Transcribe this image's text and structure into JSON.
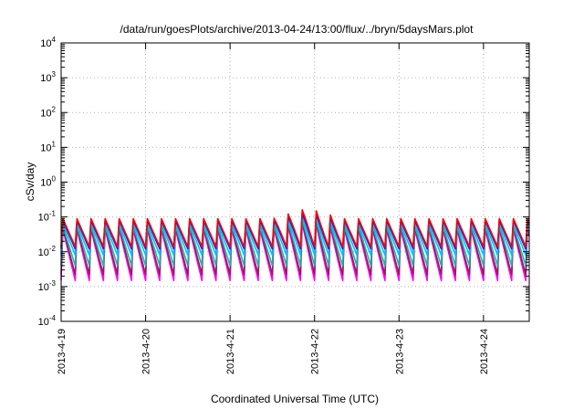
{
  "chart_data": {
    "type": "line",
    "title": "/data/run/goesPlots/archive/2013-04-24/13:00/flux/../bryn/5daysMars.plot",
    "xlabel": "Coordinated Universal Time (UTC)",
    "ylabel": "cSv/day",
    "y_scale": "log",
    "ylim": [
      0.0001,
      10000
    ],
    "xlim": [
      "2013-04-19 00:00",
      "2013-04-24 13:00"
    ],
    "grid": true,
    "x_ticks": [
      "2013-4-19",
      "2013-4-20",
      "2013-4-21",
      "2013-4-22",
      "2013-4-23",
      "2013-4-24"
    ],
    "y_ticks": [
      {
        "base": "10",
        "exp": "-4"
      },
      {
        "base": "10",
        "exp": "-3"
      },
      {
        "base": "10",
        "exp": "-2"
      },
      {
        "base": "10",
        "exp": "-1"
      },
      {
        "base": "10",
        "exp": "0"
      },
      {
        "base": "10",
        "exp": "1"
      },
      {
        "base": "10",
        "exp": "2"
      },
      {
        "base": "10",
        "exp": "3"
      },
      {
        "base": "10",
        "exp": "4"
      }
    ],
    "pattern": {
      "description": "sawtooth oscillation",
      "cycles_per_day": 6,
      "start": "2013-04-19 00:00",
      "end": "2013-04-24 13:00"
    },
    "series": [
      {
        "color": "#ff00ff",
        "peak": 0.045,
        "trough": 0.0015,
        "elevated_peak": 0.07
      },
      {
        "color": "#8b2252",
        "peak": 0.05,
        "trough": 0.0022,
        "elevated_peak": 0.08
      },
      {
        "color": "#20b2aa",
        "peak": 0.055,
        "trough": 0.004,
        "elevated_peak": 0.09
      },
      {
        "color": "#00bfff",
        "peak": 0.065,
        "trough": 0.008,
        "elevated_peak": 0.11
      },
      {
        "color": "#1e1ee0",
        "peak": 0.08,
        "trough": 0.012,
        "elevated_peak": 0.14
      },
      {
        "color": "#ff0000",
        "peak": 0.09,
        "trough": 0.014,
        "elevated_peak": 0.18
      }
    ],
    "elevated_period": [
      "2013-04-21 12:00",
      "2013-04-22 08:00"
    ]
  }
}
